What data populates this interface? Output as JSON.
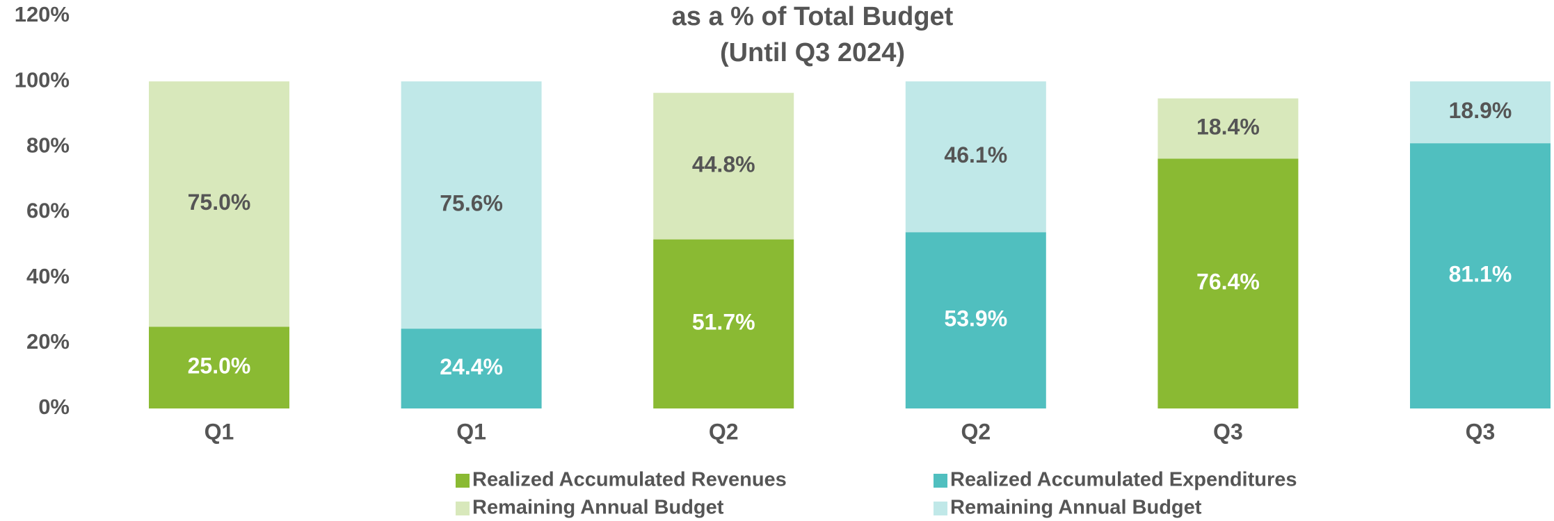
{
  "chart_data": {
    "type": "stacked_bar",
    "title": "as a % of Total Budget",
    "subtitle": "(Until Q3 2024)",
    "categories": [
      "Q1",
      "Q1",
      "Q2",
      "Q2",
      "Q3",
      "Q3"
    ],
    "series": [
      {
        "name": "Realized Accumulated Revenues",
        "color": "#8aba33",
        "label_color": "#ffffff",
        "values": [
          25.0,
          null,
          51.7,
          null,
          76.4,
          null
        ],
        "value_labels": [
          "25.0%",
          null,
          "51.7%",
          null,
          "76.4%",
          null
        ]
      },
      {
        "name": "Realized Accumulated Expenditures",
        "color": "#50bfbf",
        "label_color": "#ffffff",
        "values": [
          null,
          24.4,
          null,
          53.9,
          null,
          81.1
        ],
        "value_labels": [
          null,
          "24.4%",
          null,
          "53.9%",
          null,
          "81.1%"
        ]
      },
      {
        "name": "Remaining Annual Budget",
        "color": "#d8e8bb",
        "label_color": "#555555",
        "values": [
          75.0,
          null,
          44.8,
          null,
          18.4,
          null
        ],
        "value_labels": [
          "75.0%",
          null,
          "44.8%",
          null,
          "18.4%",
          null
        ]
      },
      {
        "name": "Remaining Annual Budget",
        "color": "#c0e8e8",
        "label_color": "#555555",
        "values": [
          null,
          75.6,
          null,
          46.1,
          null,
          18.9
        ],
        "value_labels": [
          null,
          "75.6%",
          null,
          "46.1%",
          null,
          "18.9%"
        ]
      }
    ],
    "ylim": [
      0,
      120
    ],
    "yticks": [
      {
        "value": 0,
        "label": "0%"
      },
      {
        "value": 20,
        "label": "20%"
      },
      {
        "value": 40,
        "label": "40%"
      },
      {
        "value": 60,
        "label": "60%"
      },
      {
        "value": 80,
        "label": "80%"
      },
      {
        "value": 100,
        "label": "100%"
      },
      {
        "value": 120,
        "label": "120%"
      }
    ],
    "grid": false
  }
}
